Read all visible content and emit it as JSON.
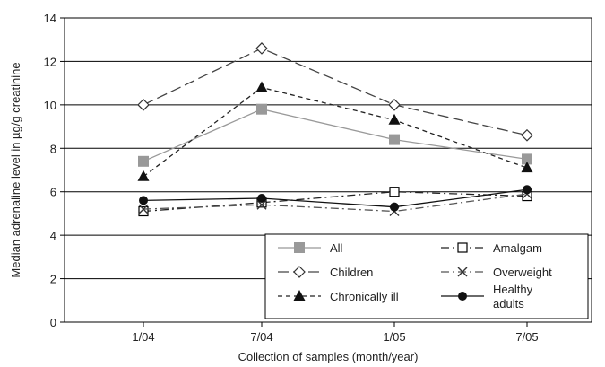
{
  "chart_data": {
    "type": "line",
    "title": "",
    "xlabel": "Collection of samples (month/year)",
    "ylabel": "Median adrenaline level in µg/g creatinine",
    "categories": [
      "1/04",
      "7/04",
      "1/05",
      "7/05"
    ],
    "ylim": [
      0,
      14
    ],
    "yticks": [
      0,
      2,
      4,
      6,
      8,
      10,
      12,
      14
    ],
    "grid": "horizontal",
    "legend_position": "bottom-right",
    "series": [
      {
        "name": "All",
        "values": [
          7.4,
          9.8,
          8.4,
          7.5
        ],
        "color": "#999999",
        "dash": "solid",
        "marker": "square-filled"
      },
      {
        "name": "Children",
        "values": [
          10.0,
          12.6,
          10.0,
          8.6
        ],
        "color": "#444444",
        "dash": "long-dash",
        "marker": "diamond-open"
      },
      {
        "name": "Chronically ill",
        "values": [
          6.7,
          10.8,
          9.3,
          7.1
        ],
        "color": "#222222",
        "dash": "short-dash",
        "marker": "triangle-filled"
      },
      {
        "name": "Amalgam",
        "values": [
          5.1,
          5.5,
          6.0,
          5.8
        ],
        "color": "#222222",
        "dash": "dash-dot",
        "marker": "square-open"
      },
      {
        "name": "Overweight",
        "values": [
          5.2,
          5.4,
          5.1,
          5.9
        ],
        "color": "#555555",
        "dash": "dash-dot",
        "marker": "x"
      },
      {
        "name": "Healthy adults",
        "values": [
          5.6,
          5.7,
          5.3,
          6.1
        ],
        "color": "#111111",
        "dash": "solid",
        "marker": "circle-filled"
      }
    ]
  }
}
